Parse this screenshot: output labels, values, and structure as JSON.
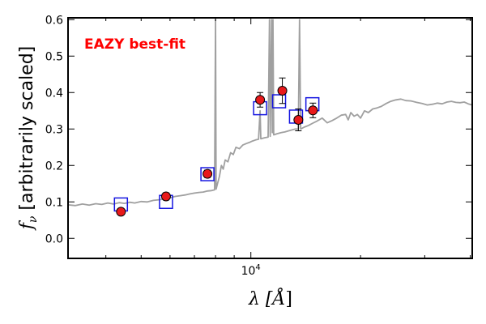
{
  "chart_data": {
    "type": "scatter",
    "annotation": "EAZY best-fit",
    "annotation_color": "#ff0000",
    "xlabel_main": "λ [",
    "xlabel_unit": "Å",
    "xlabel_close": "]",
    "ylabel_main": "[arbitrarily scaled]",
    "ylabel_symbol": "f",
    "ylabel_sub": "ν",
    "x_scale": "log",
    "xlim": [
      3150,
      40500
    ],
    "ylim": [
      -0.055,
      0.605
    ],
    "x_ticks": [
      {
        "value": 10000,
        "base": "10",
        "exp": "4"
      }
    ],
    "y_ticks": [
      {
        "value": 0.0,
        "label": "0.0"
      },
      {
        "value": 0.1,
        "label": "0.1"
      },
      {
        "value": 0.2,
        "label": "0.2"
      },
      {
        "value": 0.3,
        "label": "0.3"
      },
      {
        "value": 0.4,
        "label": "0.4"
      },
      {
        "value": 0.5,
        "label": "0.5"
      },
      {
        "value": 0.6,
        "label": "0.6"
      }
    ],
    "colors": {
      "model_line": "#a0a0a0",
      "observed_fill": "#e8191b",
      "model_box": "#1515e0",
      "error_bar": "#000000"
    },
    "series": [
      {
        "kind": "observed",
        "points": [
          {
            "x": 4400,
            "y": 0.073,
            "err": 0.008
          },
          {
            "x": 5850,
            "y": 0.115,
            "err": 0.01
          },
          {
            "x": 7600,
            "y": 0.177,
            "err": 0.01
          },
          {
            "x": 10600,
            "y": 0.38,
            "err": 0.02
          },
          {
            "x": 12200,
            "y": 0.405,
            "err": 0.035
          },
          {
            "x": 13500,
            "y": 0.325,
            "err": 0.03
          },
          {
            "x": 14800,
            "y": 0.351,
            "err": 0.02
          }
        ]
      },
      {
        "kind": "model_photometry",
        "points": [
          {
            "x": 4400,
            "y": 0.093
          },
          {
            "x": 5850,
            "y": 0.1
          },
          {
            "x": 7600,
            "y": 0.176
          },
          {
            "x": 10600,
            "y": 0.357
          },
          {
            "x": 11950,
            "y": 0.376
          },
          {
            "x": 13300,
            "y": 0.334
          },
          {
            "x": 14750,
            "y": 0.368
          }
        ]
      },
      {
        "kind": "model_sed",
        "points": [
          {
            "x": 3150,
            "y": 0.092
          },
          {
            "x": 3300,
            "y": 0.09
          },
          {
            "x": 3450,
            "y": 0.094
          },
          {
            "x": 3600,
            "y": 0.091
          },
          {
            "x": 3750,
            "y": 0.095
          },
          {
            "x": 3900,
            "y": 0.093
          },
          {
            "x": 4050,
            "y": 0.097
          },
          {
            "x": 4200,
            "y": 0.094
          },
          {
            "x": 4350,
            "y": 0.098
          },
          {
            "x": 4500,
            "y": 0.096
          },
          {
            "x": 4650,
            "y": 0.099
          },
          {
            "x": 4800,
            "y": 0.097
          },
          {
            "x": 5000,
            "y": 0.101
          },
          {
            "x": 5200,
            "y": 0.1
          },
          {
            "x": 5400,
            "y": 0.104
          },
          {
            "x": 5600,
            "y": 0.106
          },
          {
            "x": 5800,
            "y": 0.108
          },
          {
            "x": 6000,
            "y": 0.111
          },
          {
            "x": 6200,
            "y": 0.115
          },
          {
            "x": 6400,
            "y": 0.117
          },
          {
            "x": 6600,
            "y": 0.119
          },
          {
            "x": 6800,
            "y": 0.122
          },
          {
            "x": 7000,
            "y": 0.124
          },
          {
            "x": 7200,
            "y": 0.126
          },
          {
            "x": 7400,
            "y": 0.127
          },
          {
            "x": 7600,
            "y": 0.13
          },
          {
            "x": 7800,
            "y": 0.131
          },
          {
            "x": 7950,
            "y": 0.133
          },
          {
            "x": 8000,
            "y": 0.6
          },
          {
            "x": 8030,
            "y": 0.135
          },
          {
            "x": 8100,
            "y": 0.15
          },
          {
            "x": 8200,
            "y": 0.17
          },
          {
            "x": 8300,
            "y": 0.2
          },
          {
            "x": 8400,
            "y": 0.19
          },
          {
            "x": 8500,
            "y": 0.215
          },
          {
            "x": 8650,
            "y": 0.21
          },
          {
            "x": 8800,
            "y": 0.235
          },
          {
            "x": 8950,
            "y": 0.23
          },
          {
            "x": 9100,
            "y": 0.25
          },
          {
            "x": 9300,
            "y": 0.246
          },
          {
            "x": 9500,
            "y": 0.256
          },
          {
            "x": 9700,
            "y": 0.26
          },
          {
            "x": 9900,
            "y": 0.263
          },
          {
            "x": 10100,
            "y": 0.267
          },
          {
            "x": 10300,
            "y": 0.27
          },
          {
            "x": 10500,
            "y": 0.272
          },
          {
            "x": 10600,
            "y": 0.35
          },
          {
            "x": 10650,
            "y": 0.273
          },
          {
            "x": 10900,
            "y": 0.276
          },
          {
            "x": 11150,
            "y": 0.278
          },
          {
            "x": 11250,
            "y": 0.6
          },
          {
            "x": 11300,
            "y": 0.28
          },
          {
            "x": 11400,
            "y": 0.6
          },
          {
            "x": 11450,
            "y": 0.29
          },
          {
            "x": 11500,
            "y": 0.6
          },
          {
            "x": 11550,
            "y": 0.284
          },
          {
            "x": 11800,
            "y": 0.287
          },
          {
            "x": 12100,
            "y": 0.29
          },
          {
            "x": 12400,
            "y": 0.292
          },
          {
            "x": 12700,
            "y": 0.295
          },
          {
            "x": 13000,
            "y": 0.298
          },
          {
            "x": 13250,
            "y": 0.3
          },
          {
            "x": 13500,
            "y": 0.3
          },
          {
            "x": 13600,
            "y": 0.6
          },
          {
            "x": 13700,
            "y": 0.3
          },
          {
            "x": 14000,
            "y": 0.305
          },
          {
            "x": 14400,
            "y": 0.31
          },
          {
            "x": 14800,
            "y": 0.316
          },
          {
            "x": 15200,
            "y": 0.322
          },
          {
            "x": 15700,
            "y": 0.33
          },
          {
            "x": 16200,
            "y": 0.317
          },
          {
            "x": 16700,
            "y": 0.323
          },
          {
            "x": 17200,
            "y": 0.33
          },
          {
            "x": 17700,
            "y": 0.338
          },
          {
            "x": 18200,
            "y": 0.34
          },
          {
            "x": 18500,
            "y": 0.325
          },
          {
            "x": 18800,
            "y": 0.345
          },
          {
            "x": 19200,
            "y": 0.335
          },
          {
            "x": 19600,
            "y": 0.34
          },
          {
            "x": 20000,
            "y": 0.33
          },
          {
            "x": 20500,
            "y": 0.35
          },
          {
            "x": 21000,
            "y": 0.345
          },
          {
            "x": 21600,
            "y": 0.355
          },
          {
            "x": 22200,
            "y": 0.358
          },
          {
            "x": 22800,
            "y": 0.362
          },
          {
            "x": 23500,
            "y": 0.37
          },
          {
            "x": 24200,
            "y": 0.376
          },
          {
            "x": 25000,
            "y": 0.38
          },
          {
            "x": 25800,
            "y": 0.382
          },
          {
            "x": 26600,
            "y": 0.378
          },
          {
            "x": 27500,
            "y": 0.377
          },
          {
            "x": 28500,
            "y": 0.373
          },
          {
            "x": 29500,
            "y": 0.37
          },
          {
            "x": 30500,
            "y": 0.366
          },
          {
            "x": 31500,
            "y": 0.368
          },
          {
            "x": 32500,
            "y": 0.371
          },
          {
            "x": 33500,
            "y": 0.369
          },
          {
            "x": 34500,
            "y": 0.374
          },
          {
            "x": 35500,
            "y": 0.376
          },
          {
            "x": 36500,
            "y": 0.373
          },
          {
            "x": 37500,
            "y": 0.372
          },
          {
            "x": 38500,
            "y": 0.374
          },
          {
            "x": 39500,
            "y": 0.369
          },
          {
            "x": 40500,
            "y": 0.366
          }
        ]
      }
    ]
  }
}
